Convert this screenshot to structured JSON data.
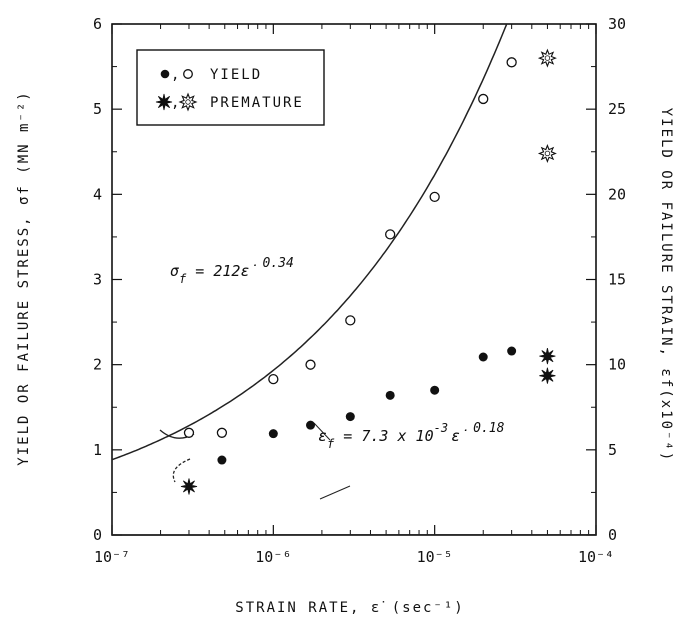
{
  "chart_data": {
    "type": "scatter",
    "x_axis": {
      "label": "STRAIN RATE, ε̇ (sec⁻¹)",
      "scale": "log",
      "range": [
        1e-07,
        0.0001
      ],
      "ticks": [
        {
          "value": 1e-07,
          "label": "10⁻⁷"
        },
        {
          "value": 1e-06,
          "label": "10⁻⁶"
        },
        {
          "value": 1e-05,
          "label": "10⁻⁵"
        },
        {
          "value": 0.0001,
          "label": "10⁻⁴"
        }
      ]
    },
    "y_left": {
      "label": "YIELD OR FAILURE STRESS, σf (MN m⁻²)",
      "range": [
        0,
        6
      ],
      "ticks": [
        "0",
        "1",
        "2",
        "3",
        "4",
        "5",
        "6"
      ]
    },
    "y_right": {
      "label": "YIELD OR FAILURE STRAIN, εf(x10⁻⁴)",
      "range": [
        0,
        30
      ],
      "ticks": [
        "0",
        "5",
        "10",
        "15",
        "20",
        "25",
        "30"
      ]
    },
    "legend": [
      {
        "label": "YIELD",
        "markers": [
          "filled-circle",
          "open-circle"
        ]
      },
      {
        "label": "PREMATURE",
        "markers": [
          "filled-star",
          "open-star"
        ]
      }
    ],
    "series": [
      {
        "name": "YIELD",
        "marker": "open-circle",
        "axis": "left",
        "points": [
          [
            3e-07,
            1.2
          ],
          [
            4.8e-07,
            1.2
          ],
          [
            1e-06,
            1.83
          ],
          [
            1.7e-06,
            2.0
          ],
          [
            3e-06,
            2.52
          ],
          [
            5.3e-06,
            3.53
          ],
          [
            1e-05,
            3.97
          ],
          [
            2e-05,
            5.12
          ],
          [
            3e-05,
            5.55
          ]
        ]
      },
      {
        "name": "YIELD",
        "marker": "filled-circle",
        "axis": "right",
        "points": [
          [
            4.8e-07,
            4.4
          ],
          [
            1e-06,
            5.95
          ],
          [
            1.7e-06,
            6.45
          ],
          [
            3e-06,
            6.95
          ],
          [
            5.3e-06,
            8.2
          ],
          [
            1e-05,
            8.5
          ],
          [
            2e-05,
            10.45
          ],
          [
            3e-05,
            10.8
          ]
        ]
      },
      {
        "name": "PREMATURE",
        "marker": "open-star",
        "axis": "left",
        "points": [
          [
            5e-05,
            5.6
          ],
          [
            5e-05,
            4.48
          ]
        ]
      },
      {
        "name": "PREMATURE",
        "marker": "filled-star",
        "axis": "right",
        "points": [
          [
            5e-05,
            10.5
          ],
          [
            5e-05,
            9.35
          ],
          [
            3e-07,
            2.85
          ]
        ]
      }
    ],
    "fits": [
      {
        "label_symbol": "σ",
        "label_sub": "f",
        "label_rest": " = 212ε̇",
        "label_exp": "0.34",
        "coef": 212,
        "exp": 0.34,
        "axis": "left"
      },
      {
        "label_symbol": "ε",
        "label_sub": "f",
        "label_rest": " = 7.3 x 10",
        "label_exp1": "-3",
        "label_rest2": "ε̇",
        "label_exp": "0.18",
        "coef": 0.0073,
        "exp": 0.18,
        "axis": "left"
      }
    ],
    "grid": false
  }
}
